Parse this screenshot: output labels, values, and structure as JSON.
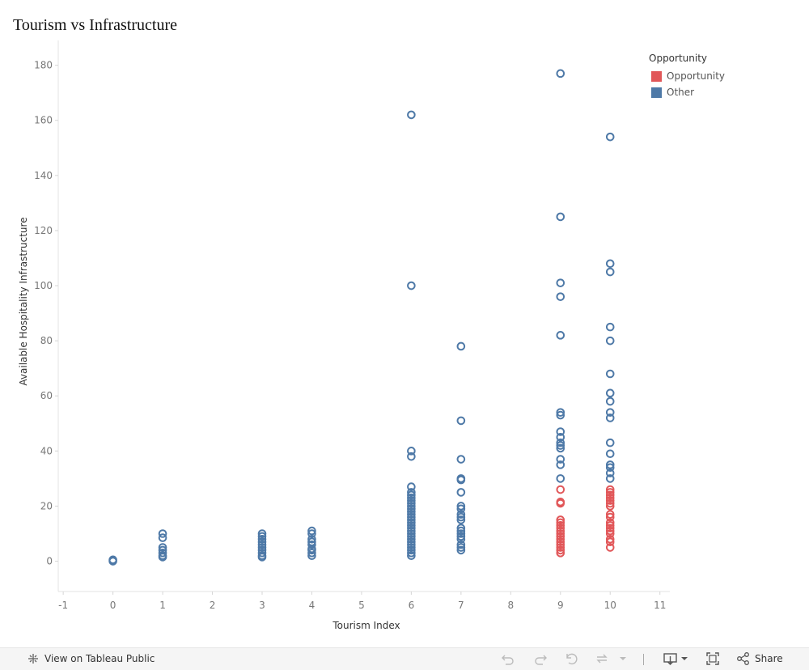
{
  "title": "Tourism vs Infrastructure",
  "chart_data": {
    "type": "scatter",
    "title": "Tourism vs Infrastructure",
    "xlabel": "Tourism Index",
    "ylabel": "Available Hospitality Infrastructure",
    "xlim": [
      -1.1,
      11.2
    ],
    "ylim": [
      -11,
      189
    ],
    "xticks": [
      -1,
      0,
      1,
      2,
      3,
      4,
      5,
      6,
      7,
      8,
      9,
      10,
      11
    ],
    "yticks": [
      0,
      20,
      40,
      60,
      80,
      100,
      120,
      140,
      160,
      180
    ],
    "grid": false,
    "legend_position": "top-right",
    "series": [
      {
        "name": "Opportunity",
        "color": "#e15759",
        "points": [
          {
            "x": 9,
            "y": 26
          },
          {
            "x": 9,
            "y": 21.5
          },
          {
            "x": 9,
            "y": 21
          },
          {
            "x": 9,
            "y": 15
          },
          {
            "x": 9,
            "y": 14
          },
          {
            "x": 9,
            "y": 13
          },
          {
            "x": 9,
            "y": 12
          },
          {
            "x": 9,
            "y": 11
          },
          {
            "x": 9,
            "y": 10
          },
          {
            "x": 9,
            "y": 9
          },
          {
            "x": 9,
            "y": 8
          },
          {
            "x": 9,
            "y": 7
          },
          {
            "x": 9,
            "y": 6
          },
          {
            "x": 9,
            "y": 5
          },
          {
            "x": 9,
            "y": 4
          },
          {
            "x": 9,
            "y": 3
          },
          {
            "x": 10,
            "y": 26
          },
          {
            "x": 10,
            "y": 25
          },
          {
            "x": 10,
            "y": 24
          },
          {
            "x": 10,
            "y": 23
          },
          {
            "x": 10,
            "y": 22
          },
          {
            "x": 10,
            "y": 21
          },
          {
            "x": 10,
            "y": 20
          },
          {
            "x": 10,
            "y": 17
          },
          {
            "x": 10,
            "y": 16
          },
          {
            "x": 10,
            "y": 14
          },
          {
            "x": 10,
            "y": 13
          },
          {
            "x": 10,
            "y": 12
          },
          {
            "x": 10,
            "y": 11
          },
          {
            "x": 10,
            "y": 10
          },
          {
            "x": 10,
            "y": 8
          },
          {
            "x": 10,
            "y": 7
          },
          {
            "x": 10,
            "y": 5
          }
        ]
      },
      {
        "name": "Other",
        "color": "#4e79a7",
        "points": [
          {
            "x": 0,
            "y": 0
          },
          {
            "x": 0,
            "y": 0.5
          },
          {
            "x": 1,
            "y": 10
          },
          {
            "x": 1,
            "y": 8.5
          },
          {
            "x": 1,
            "y": 5
          },
          {
            "x": 1,
            "y": 4
          },
          {
            "x": 1,
            "y": 3
          },
          {
            "x": 1,
            "y": 2
          },
          {
            "x": 1,
            "y": 1.5
          },
          {
            "x": 3,
            "y": 10
          },
          {
            "x": 3,
            "y": 9
          },
          {
            "x": 3,
            "y": 8
          },
          {
            "x": 3,
            "y": 7
          },
          {
            "x": 3,
            "y": 6
          },
          {
            "x": 3,
            "y": 5
          },
          {
            "x": 3,
            "y": 4
          },
          {
            "x": 3,
            "y": 3
          },
          {
            "x": 3,
            "y": 2
          },
          {
            "x": 3,
            "y": 1.5
          },
          {
            "x": 4,
            "y": 11
          },
          {
            "x": 4,
            "y": 10
          },
          {
            "x": 4,
            "y": 8
          },
          {
            "x": 4,
            "y": 7
          },
          {
            "x": 4,
            "y": 6
          },
          {
            "x": 4,
            "y": 4.5
          },
          {
            "x": 4,
            "y": 4
          },
          {
            "x": 4,
            "y": 3
          },
          {
            "x": 4,
            "y": 2
          },
          {
            "x": 6,
            "y": 162
          },
          {
            "x": 6,
            "y": 100
          },
          {
            "x": 6,
            "y": 40
          },
          {
            "x": 6,
            "y": 38
          },
          {
            "x": 6,
            "y": 27
          },
          {
            "x": 6,
            "y": 25
          },
          {
            "x": 6,
            "y": 24
          },
          {
            "x": 6,
            "y": 23
          },
          {
            "x": 6,
            "y": 22
          },
          {
            "x": 6,
            "y": 21
          },
          {
            "x": 6,
            "y": 20
          },
          {
            "x": 6,
            "y": 19
          },
          {
            "x": 6,
            "y": 18
          },
          {
            "x": 6,
            "y": 17
          },
          {
            "x": 6,
            "y": 16
          },
          {
            "x": 6,
            "y": 15
          },
          {
            "x": 6,
            "y": 14
          },
          {
            "x": 6,
            "y": 13
          },
          {
            "x": 6,
            "y": 12
          },
          {
            "x": 6,
            "y": 11
          },
          {
            "x": 6,
            "y": 10
          },
          {
            "x": 6,
            "y": 9
          },
          {
            "x": 6,
            "y": 8
          },
          {
            "x": 6,
            "y": 7
          },
          {
            "x": 6,
            "y": 6
          },
          {
            "x": 6,
            "y": 5
          },
          {
            "x": 6,
            "y": 4
          },
          {
            "x": 6,
            "y": 3
          },
          {
            "x": 6,
            "y": 2
          },
          {
            "x": 7,
            "y": 78
          },
          {
            "x": 7,
            "y": 51
          },
          {
            "x": 7,
            "y": 37
          },
          {
            "x": 7,
            "y": 30
          },
          {
            "x": 7,
            "y": 29.5
          },
          {
            "x": 7,
            "y": 25
          },
          {
            "x": 7,
            "y": 20
          },
          {
            "x": 7,
            "y": 19
          },
          {
            "x": 7,
            "y": 17
          },
          {
            "x": 7,
            "y": 16
          },
          {
            "x": 7,
            "y": 15
          },
          {
            "x": 7,
            "y": 12
          },
          {
            "x": 7,
            "y": 11
          },
          {
            "x": 7,
            "y": 10
          },
          {
            "x": 7,
            "y": 9
          },
          {
            "x": 7,
            "y": 8
          },
          {
            "x": 7,
            "y": 6
          },
          {
            "x": 7,
            "y": 5
          },
          {
            "x": 7,
            "y": 4
          },
          {
            "x": 9,
            "y": 177
          },
          {
            "x": 9,
            "y": 125
          },
          {
            "x": 9,
            "y": 101
          },
          {
            "x": 9,
            "y": 96
          },
          {
            "x": 9,
            "y": 82
          },
          {
            "x": 9,
            "y": 54
          },
          {
            "x": 9,
            "y": 53
          },
          {
            "x": 9,
            "y": 47
          },
          {
            "x": 9,
            "y": 45
          },
          {
            "x": 9,
            "y": 43
          },
          {
            "x": 9,
            "y": 42
          },
          {
            "x": 9,
            "y": 41
          },
          {
            "x": 9,
            "y": 37
          },
          {
            "x": 9,
            "y": 35
          },
          {
            "x": 9,
            "y": 30
          },
          {
            "x": 10,
            "y": 154
          },
          {
            "x": 10,
            "y": 108
          },
          {
            "x": 10,
            "y": 105
          },
          {
            "x": 10,
            "y": 85
          },
          {
            "x": 10,
            "y": 80
          },
          {
            "x": 10,
            "y": 68
          },
          {
            "x": 10,
            "y": 61
          },
          {
            "x": 10,
            "y": 58
          },
          {
            "x": 10,
            "y": 54
          },
          {
            "x": 10,
            "y": 52
          },
          {
            "x": 10,
            "y": 43
          },
          {
            "x": 10,
            "y": 39
          },
          {
            "x": 10,
            "y": 35
          },
          {
            "x": 10,
            "y": 34
          },
          {
            "x": 10,
            "y": 32
          },
          {
            "x": 10,
            "y": 30
          }
        ]
      }
    ]
  },
  "legend": {
    "title": "Opportunity",
    "items": [
      {
        "label": "Opportunity",
        "color": "#e15759"
      },
      {
        "label": "Other",
        "color": "#4e79a7"
      }
    ]
  },
  "footer": {
    "view_label": "View on Tableau Public",
    "share_label": "Share",
    "icons": [
      "tableau-icon",
      "undo-icon",
      "redo-icon",
      "revert-icon",
      "refresh-icon",
      "download-icon",
      "fullscreen-icon",
      "share-icon"
    ]
  }
}
